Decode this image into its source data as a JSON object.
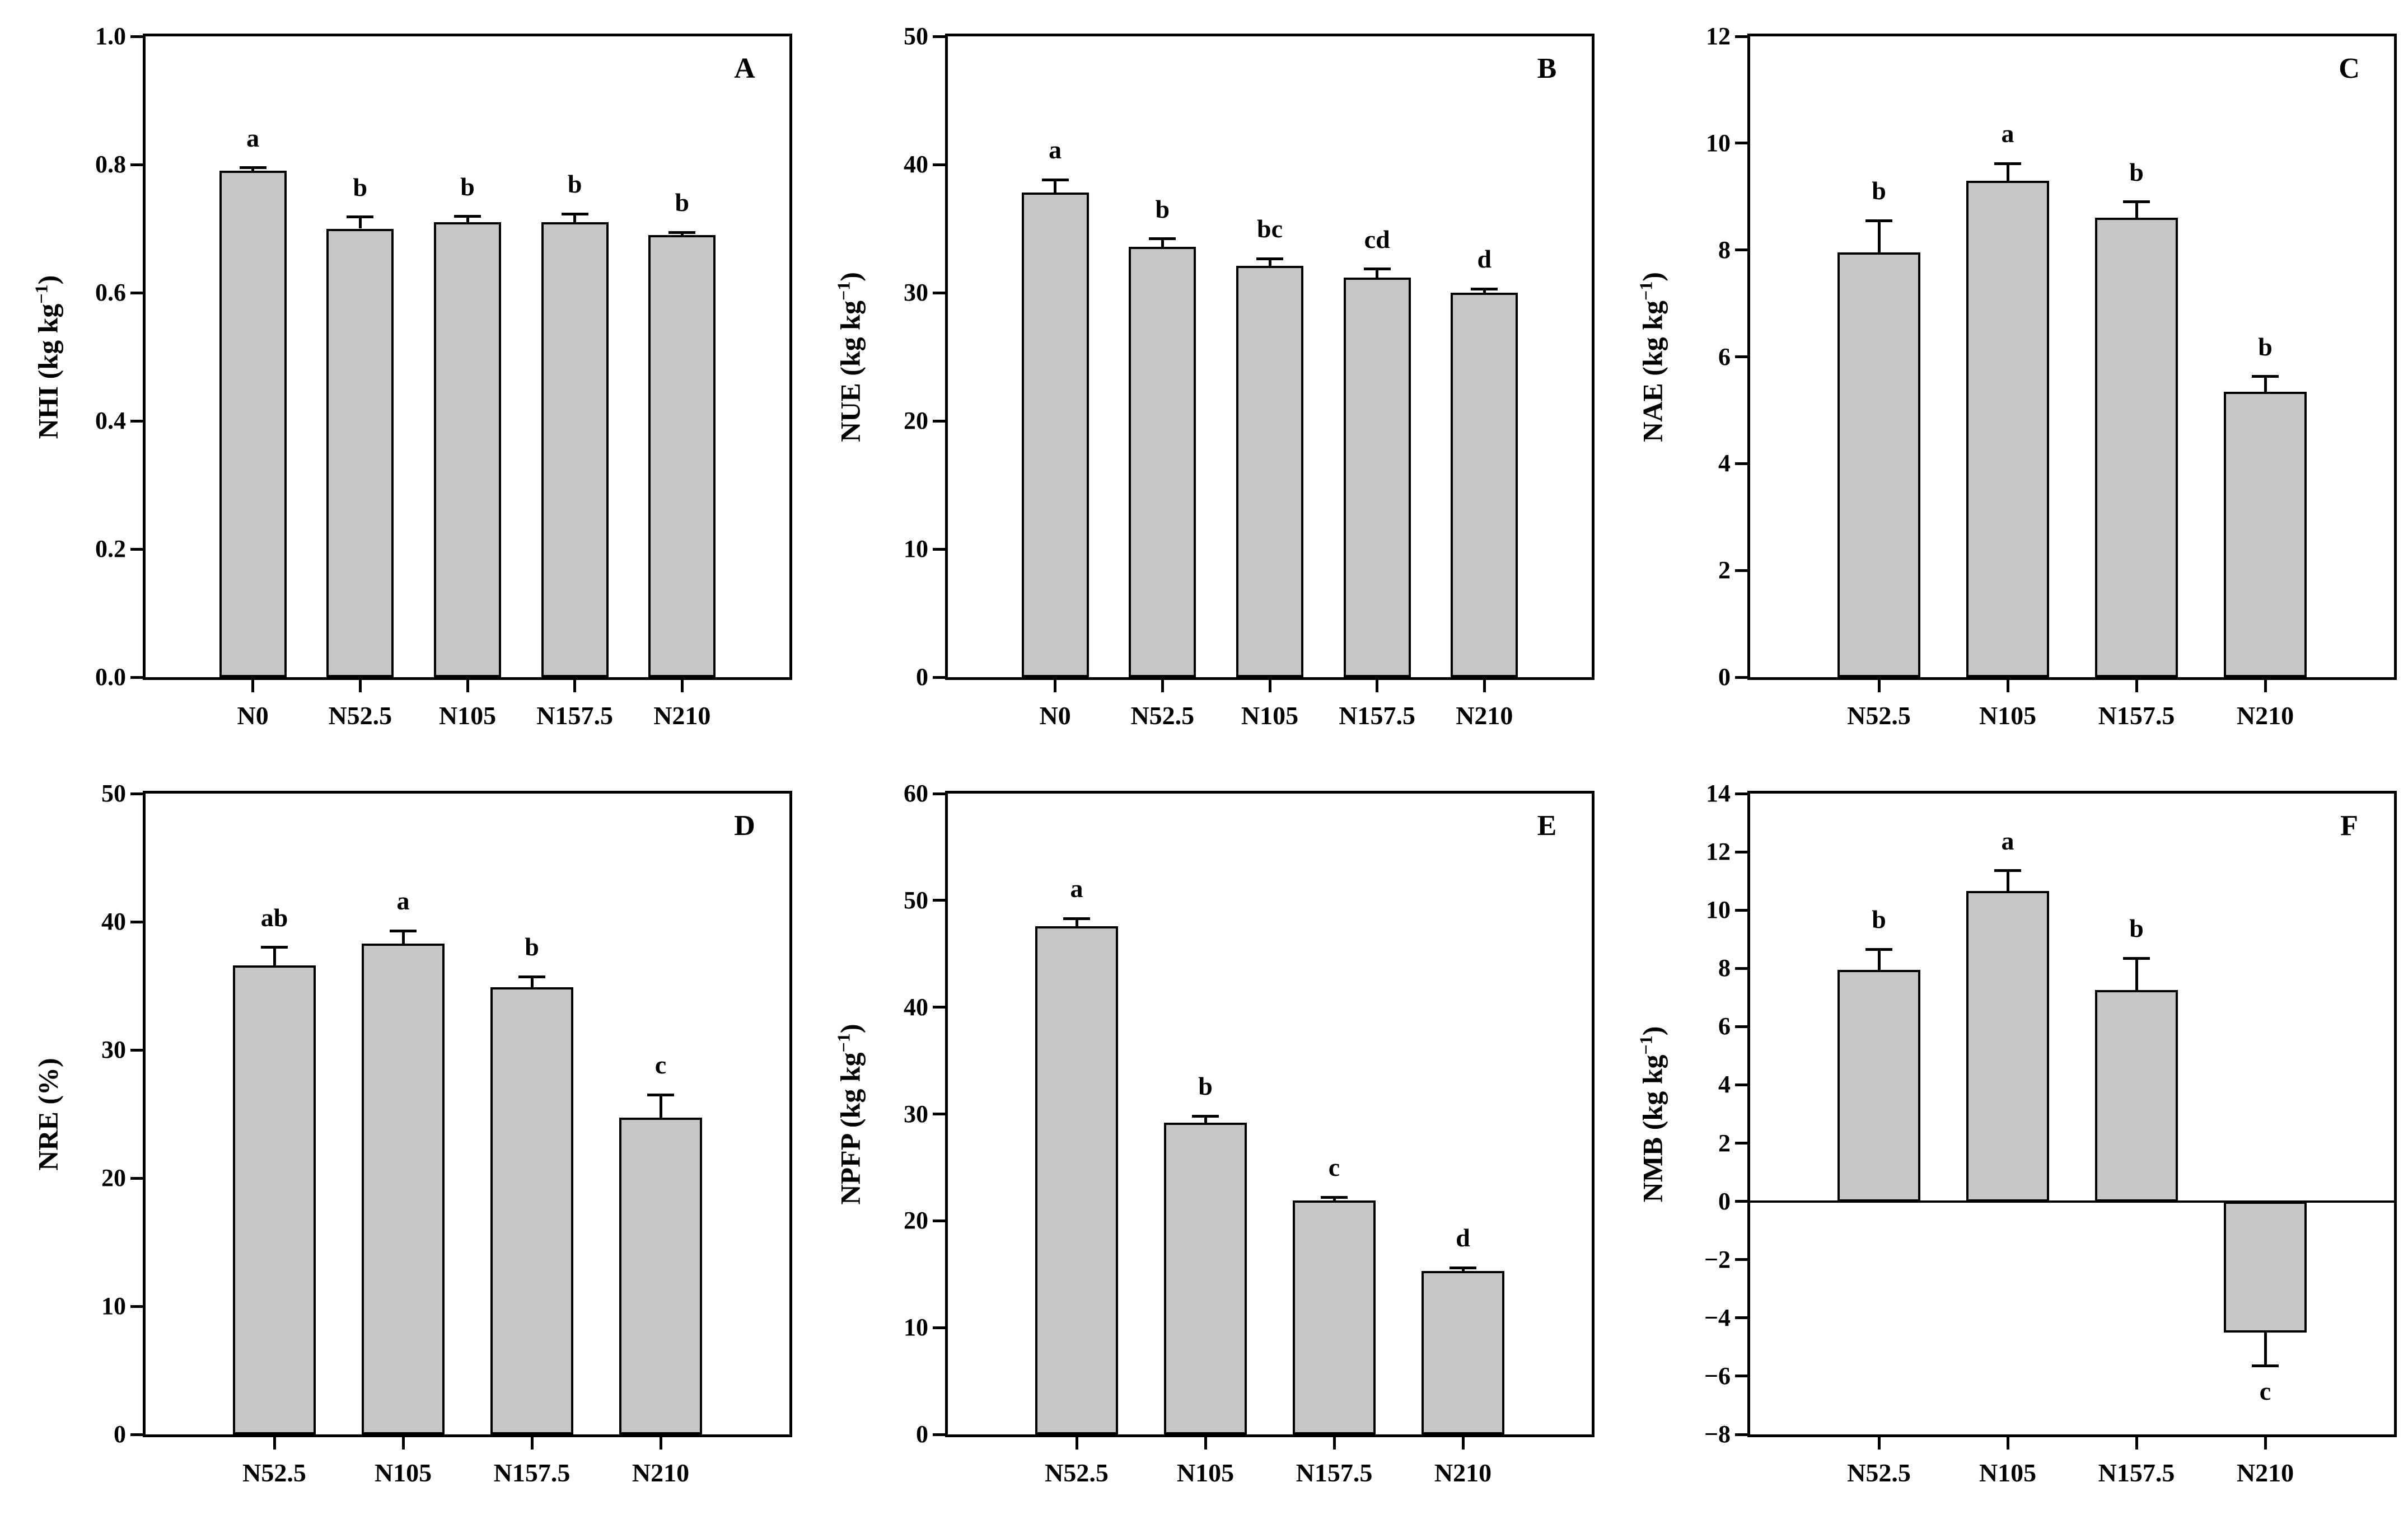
{
  "figure": {
    "background": "#ffffff",
    "description": "Six-panel bar chart figure of nitrogen use efficiency metrics under N fertilization treatments"
  },
  "colors": {
    "bar_fill": "#c6c6c6",
    "bar_border": "#000000",
    "axis": "#000000",
    "text": "#000000"
  },
  "chart_data": [
    {
      "type": "bar",
      "panel_label": "A",
      "ylabel_prefix": "NHI (kg kg",
      "ylabel_sup": "−1",
      "ylabel_suffix": ")",
      "ylim": [
        0,
        1.0
      ],
      "yticks": [
        0,
        0.2,
        0.4,
        0.6,
        0.8,
        1.0
      ],
      "ytick_labels": [
        "0.0",
        "0.2",
        "0.4",
        "0.6",
        "0.8",
        "1.0"
      ],
      "categories": [
        "N0",
        "N52.5",
        "N105",
        "N157.5",
        "N210"
      ],
      "values": [
        0.79,
        0.7,
        0.71,
        0.71,
        0.69
      ],
      "errors": [
        0.005,
        0.018,
        0.009,
        0.013,
        0.004
      ],
      "sig_letters": [
        "a",
        "b",
        "b",
        "b",
        "b"
      ],
      "grid": false,
      "legend": null
    },
    {
      "type": "bar",
      "panel_label": "B",
      "ylabel_prefix": "NUE (kg kg",
      "ylabel_sup": "−1",
      "ylabel_suffix": ")",
      "ylim": [
        0,
        50
      ],
      "yticks": [
        0,
        10,
        20,
        30,
        40,
        50
      ],
      "ytick_labels": [
        "0",
        "10",
        "20",
        "30",
        "40",
        "50"
      ],
      "categories": [
        "N0",
        "N52.5",
        "N105",
        "N157.5",
        "N210"
      ],
      "values": [
        37.8,
        33.6,
        32.1,
        31.2,
        30.0
      ],
      "errors": [
        1.0,
        0.6,
        0.55,
        0.65,
        0.3
      ],
      "sig_letters": [
        "a",
        "b",
        "bc",
        "cd",
        "d"
      ],
      "grid": false,
      "legend": null
    },
    {
      "type": "bar",
      "panel_label": "C",
      "ylabel_prefix": "NAE (kg kg",
      "ylabel_sup": "−1",
      "ylabel_suffix": ")",
      "ylim": [
        0,
        12
      ],
      "yticks": [
        0,
        2,
        4,
        6,
        8,
        10,
        12
      ],
      "ytick_labels": [
        "0",
        "2",
        "4",
        "6",
        "8",
        "10",
        "12"
      ],
      "categories": [
        "N52.5",
        "N105",
        "N157.5",
        "N210"
      ],
      "values": [
        7.95,
        9.3,
        8.6,
        5.35
      ],
      "errors": [
        0.6,
        0.32,
        0.3,
        0.28
      ],
      "sig_letters": [
        "b",
        "a",
        "b",
        "b"
      ],
      "grid": false,
      "legend": null
    },
    {
      "type": "bar",
      "panel_label": "D",
      "ylabel_prefix": "NRE (%)",
      "ylabel_sup": "",
      "ylabel_suffix": "",
      "ylim": [
        0,
        50
      ],
      "yticks": [
        0,
        10,
        20,
        30,
        40,
        50
      ],
      "ytick_labels": [
        "0",
        "10",
        "20",
        "30",
        "40",
        "50"
      ],
      "categories": [
        "N52.5",
        "N105",
        "N157.5",
        "N210"
      ],
      "values": [
        36.6,
        38.3,
        34.9,
        24.7
      ],
      "errors": [
        1.4,
        1.0,
        0.8,
        1.8
      ],
      "sig_letters": [
        "ab",
        "a",
        "b",
        "c"
      ],
      "grid": false,
      "legend": null
    },
    {
      "type": "bar",
      "panel_label": "E",
      "ylabel_prefix": "NPFP (kg kg",
      "ylabel_sup": "−1",
      "ylabel_suffix": ")",
      "ylim": [
        0,
        60
      ],
      "yticks": [
        0,
        10,
        20,
        30,
        40,
        50,
        60
      ],
      "ytick_labels": [
        "0",
        "10",
        "20",
        "30",
        "40",
        "50",
        "60"
      ],
      "categories": [
        "N52.5",
        "N105",
        "N157.5",
        "N210"
      ],
      "values": [
        47.6,
        29.2,
        21.9,
        15.3
      ],
      "errors": [
        0.7,
        0.6,
        0.3,
        0.3
      ],
      "sig_letters": [
        "a",
        "b",
        "c",
        "d"
      ],
      "grid": false,
      "legend": null
    },
    {
      "type": "bar",
      "panel_label": "F",
      "ylabel_prefix": "NMB (kg kg",
      "ylabel_sup": "−1",
      "ylabel_suffix": ")",
      "ylim": [
        -8,
        14
      ],
      "yticks": [
        -8,
        -6,
        -4,
        -2,
        0,
        2,
        4,
        6,
        8,
        10,
        12,
        14
      ],
      "ytick_labels": [
        "−8",
        "−6",
        "−4",
        "−2",
        "0",
        "2",
        "4",
        "6",
        "8",
        "10",
        "12",
        "14"
      ],
      "categories": [
        "N52.5",
        "N105",
        "N157.5",
        "N210"
      ],
      "values": [
        7.95,
        10.65,
        7.25,
        -4.5
      ],
      "errors": [
        0.7,
        0.7,
        1.1,
        1.15
      ],
      "sig_letters": [
        "b",
        "a",
        "b",
        "c"
      ],
      "grid": false,
      "legend": null
    }
  ]
}
